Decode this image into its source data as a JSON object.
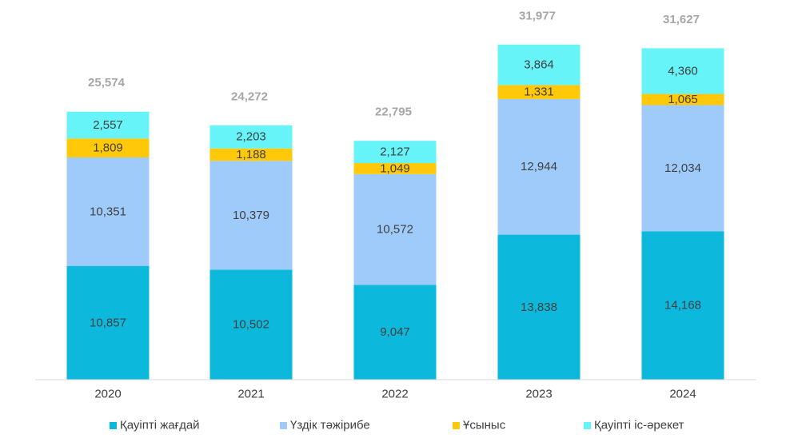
{
  "chart_data": {
    "type": "bar",
    "stacked": true,
    "categories": [
      "2020",
      "2021",
      "2022",
      "2023",
      "2024"
    ],
    "series": [
      {
        "name": "Қауіпті жағдай",
        "color": "#0cb8dc",
        "values": [
          10857,
          10502,
          9047,
          13838,
          14168
        ]
      },
      {
        "name": "Үздік тәжірибе",
        "color": "#9fcbfb",
        "values": [
          10351,
          10379,
          10572,
          12944,
          12034
        ]
      },
      {
        "name": "Ұсыныс",
        "color": "#ffc90a",
        "values": [
          1809,
          1188,
          1049,
          1331,
          1065
        ]
      },
      {
        "name": "Қауіпті іс-әрекет",
        "color": "#66f4f8",
        "values": [
          2557,
          2203,
          2127,
          3864,
          4360
        ]
      }
    ],
    "segment_labels": [
      [
        "10,857",
        "10,502",
        "9,047",
        "13,838",
        "14,168"
      ],
      [
        "10,351",
        "10,379",
        "10,572",
        "12,944",
        "12,034"
      ],
      [
        "1,809",
        "1,188",
        "1,049",
        "1,331",
        "1,065"
      ],
      [
        "2,557",
        "2,203",
        "2,127",
        "3,864",
        "4,360"
      ]
    ],
    "totals": [
      25574,
      24272,
      22795,
      31977,
      31627
    ],
    "total_labels": [
      "25,574",
      "24,272",
      "22,795",
      "31,977",
      "31,627"
    ],
    "total_color": "#a6a6a6",
    "ylim": [
      0,
      36000
    ],
    "grid": false,
    "legend_position": "bottom",
    "title": "",
    "xlabel": "",
    "ylabel": ""
  }
}
